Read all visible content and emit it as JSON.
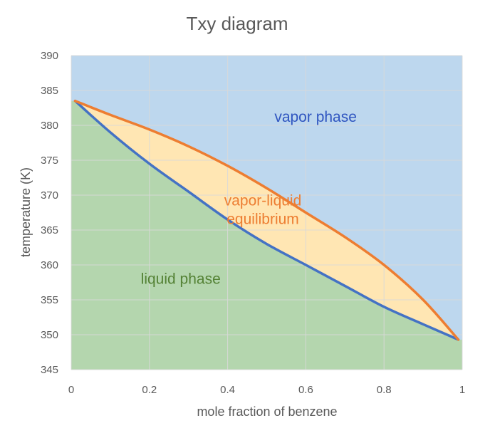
{
  "chart_data": {
    "type": "area",
    "title": "Txy diagram",
    "xlabel": "mole fraction of benzene",
    "ylabel": "temperature (K)",
    "xlim": [
      0,
      1
    ],
    "ylim": [
      345,
      390
    ],
    "x_ticks": [
      0,
      0.2,
      0.4,
      0.6,
      0.8,
      1
    ],
    "x_tick_labels": [
      "0",
      "0.2",
      "0.4",
      "0.6",
      "0.8",
      "1"
    ],
    "y_ticks": [
      345,
      350,
      355,
      360,
      365,
      370,
      375,
      380,
      385,
      390
    ],
    "y_tick_labels": [
      "345",
      "350",
      "355",
      "360",
      "365",
      "370",
      "375",
      "380",
      "385",
      "390"
    ],
    "grid": true,
    "series": [
      {
        "name": "",
        "role": "bubble-point (liquid) curve",
        "color": "#4472C4",
        "x": [
          0.01,
          0.1,
          0.2,
          0.3,
          0.4,
          0.5,
          0.6,
          0.7,
          0.8,
          0.9,
          0.99
        ],
        "y": [
          383.5,
          379,
          374.5,
          370.5,
          366.5,
          363,
          360,
          357,
          354,
          351.5,
          349.3
        ]
      },
      {
        "name": "",
        "role": "dew-point (vapor) curve",
        "color": "#ED7D31",
        "x": [
          0.01,
          0.1,
          0.2,
          0.3,
          0.4,
          0.5,
          0.6,
          0.7,
          0.8,
          0.9,
          0.99
        ],
        "y": [
          383.5,
          381.5,
          379.4,
          377,
          374.2,
          371,
          367.5,
          364,
          360,
          355,
          349.3
        ]
      }
    ],
    "regions": [
      {
        "label": "vapor phase",
        "fill": "#BDD7EE",
        "label_color": "#2F55C0",
        "label_x": 0.625,
        "label_y": 380.5
      },
      {
        "label": "vapor-liquid equilibrium",
        "lines": [
          "vapor-liquid",
          "equilibrium"
        ],
        "fill": "#FFE6B3",
        "label_color": "#ED7D31",
        "label_x": 0.49,
        "label_y": 368.5
      },
      {
        "label": "liquid phase",
        "fill": "#B4D6AE",
        "label_color": "#548235",
        "label_x": 0.28,
        "label_y": 357.3
      }
    ]
  }
}
